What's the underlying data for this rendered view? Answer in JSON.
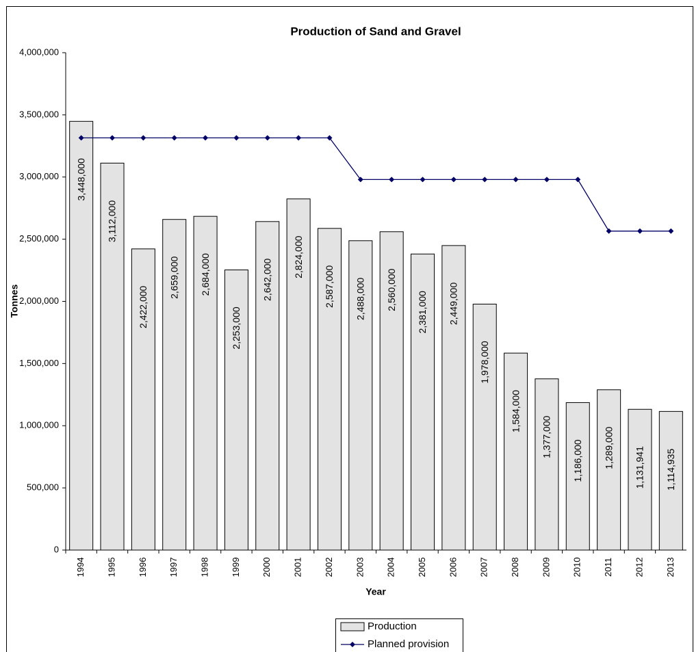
{
  "chart_data": {
    "type": "bar",
    "title": "Production of Sand and Gravel",
    "x_label": "Year",
    "y_label": "Tonnes",
    "categories": [
      "1994",
      "1995",
      "1996",
      "1997",
      "1998",
      "1999",
      "2000",
      "2001",
      "2002",
      "2003",
      "2004",
      "2005",
      "2006",
      "2007",
      "2008",
      "2009",
      "2010",
      "2011",
      "2012",
      "2013"
    ],
    "series": [
      {
        "name": "Production",
        "type": "bar",
        "color": "#e3e3e3",
        "values": [
          3448000,
          3112000,
          2422000,
          2659000,
          2684000,
          2253000,
          2642000,
          2824000,
          2587000,
          2488000,
          2560000,
          2381000,
          2449000,
          1978000,
          1584000,
          1377000,
          1186000,
          1289000,
          1131941,
          1114935
        ],
        "value_labels": [
          "3,448,000",
          "3,112,000",
          "2,422,000",
          "2,659,000",
          "2,684,000",
          "2,253,000",
          "2,642,000",
          "2,824,000",
          "2,587,000",
          "2,488,000",
          "2,560,000",
          "2,381,000",
          "2,449,000",
          "1,978,000",
          "1,584,000",
          "1,377,000",
          "1,186,000",
          "1,289,000",
          "1,131,941",
          "1,114,935"
        ]
      },
      {
        "name": "Planned provision",
        "type": "line",
        "color": "#000066",
        "values": [
          3315000,
          3315000,
          3315000,
          3315000,
          3315000,
          3315000,
          3315000,
          3315000,
          3315000,
          2980000,
          2980000,
          2980000,
          2980000,
          2980000,
          2980000,
          2980000,
          2980000,
          2565000,
          2565000,
          2565000
        ]
      }
    ],
    "ylim": [
      0,
      4000000
    ],
    "yticks": [
      0,
      {
        "value": 500000,
        "label": "500,000"
      },
      {
        "value": 1000000,
        "label": "1,000,000"
      },
      {
        "value": 1500000,
        "label": "1,500,000"
      },
      {
        "value": 2000000,
        "label": "2,000,000"
      },
      {
        "value": 2500000,
        "label": "2,500,000"
      },
      {
        "value": 3000000,
        "label": "3,000,000"
      },
      {
        "value": 3500000,
        "label": "3,500,000"
      },
      {
        "value": 4000000,
        "label": "4,000,000"
      }
    ],
    "grid": false,
    "legend": "bottom"
  }
}
